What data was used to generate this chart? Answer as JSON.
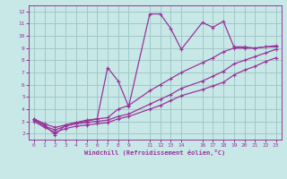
{
  "bg_color": "#c8e8e8",
  "grid_color": "#a0c8c8",
  "line_color": "#993399",
  "xlabel": "Windchill (Refroidissement éolien,°C)",
  "xlim": [
    -0.5,
    23.5
  ],
  "ylim": [
    1.5,
    12.5
  ],
  "xtick_positions": [
    0,
    1,
    2,
    3,
    4,
    5,
    6,
    7,
    8,
    9,
    11,
    12,
    13,
    14,
    16,
    17,
    18,
    19,
    20,
    21,
    22,
    23
  ],
  "xtick_labels": [
    "0",
    "1",
    "2",
    "3",
    "4",
    "5",
    "6",
    "7",
    "8",
    "9",
    "11",
    "12",
    "13",
    "14",
    "16",
    "17",
    "18",
    "19",
    "20",
    "21",
    "22",
    "23"
  ],
  "ytick_positions": [
    2,
    3,
    4,
    5,
    6,
    7,
    8,
    9,
    10,
    11,
    12
  ],
  "ytick_labels": [
    "2",
    "3",
    "4",
    "5",
    "6",
    "7",
    "8",
    "9",
    "10",
    "11",
    "12"
  ],
  "line1_x": [
    0,
    1,
    2,
    3,
    4,
    5,
    6,
    7,
    8,
    9,
    11,
    12,
    13,
    14,
    16,
    17,
    18,
    19,
    20,
    21,
    22,
    23
  ],
  "line1_y": [
    3.2,
    2.7,
    1.9,
    2.7,
    2.9,
    3.1,
    3.2,
    7.4,
    6.3,
    4.2,
    11.8,
    11.8,
    10.6,
    8.9,
    11.1,
    10.7,
    11.2,
    9.1,
    9.1,
    9.0,
    9.1,
    9.1
  ],
  "line2_x": [
    0,
    1,
    2,
    3,
    4,
    5,
    6,
    7,
    8,
    9,
    11,
    12,
    13,
    14,
    16,
    17,
    18,
    19,
    20,
    21,
    22,
    23
  ],
  "line2_y": [
    3.2,
    2.8,
    2.5,
    2.7,
    2.9,
    3.0,
    3.2,
    3.3,
    4.0,
    4.3,
    5.5,
    6.0,
    6.5,
    7.0,
    7.8,
    8.2,
    8.7,
    9.0,
    9.0,
    9.0,
    9.1,
    9.2
  ],
  "line3_x": [
    0,
    1,
    2,
    3,
    4,
    5,
    6,
    7,
    8,
    9,
    11,
    12,
    13,
    14,
    16,
    17,
    18,
    19,
    20,
    21,
    22,
    23
  ],
  "line3_y": [
    3.1,
    2.6,
    2.3,
    2.6,
    2.8,
    2.9,
    3.0,
    3.1,
    3.4,
    3.6,
    4.4,
    4.8,
    5.2,
    5.7,
    6.3,
    6.7,
    7.1,
    7.7,
    8.0,
    8.3,
    8.6,
    8.9
  ],
  "line4_x": [
    0,
    1,
    2,
    3,
    4,
    5,
    6,
    7,
    8,
    9,
    11,
    12,
    13,
    14,
    16,
    17,
    18,
    19,
    20,
    21,
    22,
    23
  ],
  "line4_y": [
    3.0,
    2.5,
    2.1,
    2.4,
    2.6,
    2.7,
    2.8,
    2.9,
    3.2,
    3.4,
    4.0,
    4.3,
    4.7,
    5.1,
    5.6,
    5.9,
    6.2,
    6.8,
    7.2,
    7.5,
    7.9,
    8.2
  ]
}
